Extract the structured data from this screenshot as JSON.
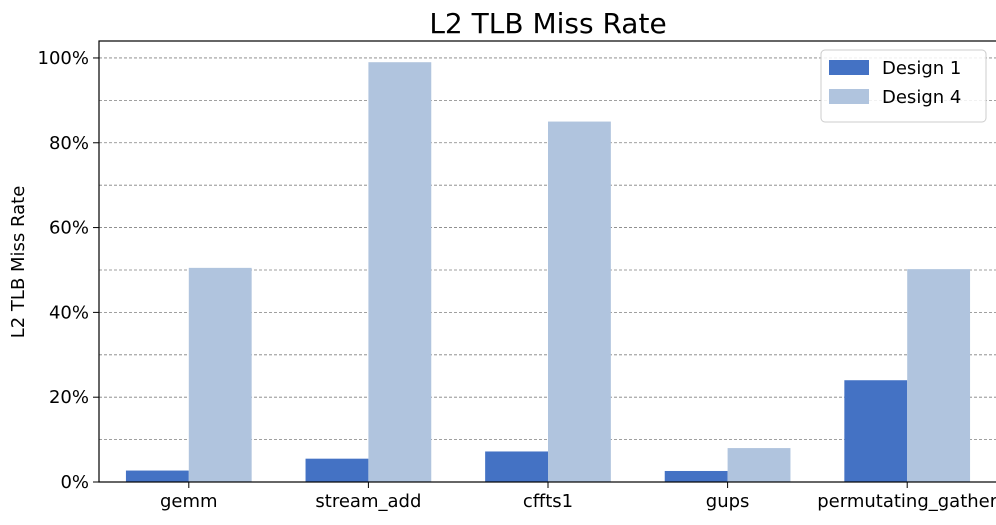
{
  "chart_data": {
    "type": "bar",
    "title": "L2 TLB Miss Rate",
    "xlabel": "",
    "ylabel": "L2 TLB Miss Rate",
    "categories": [
      "gemm",
      "stream_add",
      "cffts1",
      "gups",
      "permutating_gather"
    ],
    "series": [
      {
        "name": "Design 1",
        "color": "#4472c4",
        "values": [
          2.7,
          5.5,
          7.2,
          2.6,
          24.0
        ]
      },
      {
        "name": "Design 4",
        "color": "#b0c4de",
        "values": [
          50.5,
          99.0,
          85.0,
          8.0,
          50.2
        ]
      }
    ],
    "ylim": [
      0,
      104
    ],
    "yticks": [
      0,
      20,
      40,
      60,
      80,
      100
    ],
    "ytick_labels": [
      "0%",
      "20%",
      "40%",
      "60%",
      "80%",
      "100%"
    ],
    "grid": true,
    "grid_axis": "y",
    "grid_minor_step": 10,
    "legend_position": "top-right"
  }
}
